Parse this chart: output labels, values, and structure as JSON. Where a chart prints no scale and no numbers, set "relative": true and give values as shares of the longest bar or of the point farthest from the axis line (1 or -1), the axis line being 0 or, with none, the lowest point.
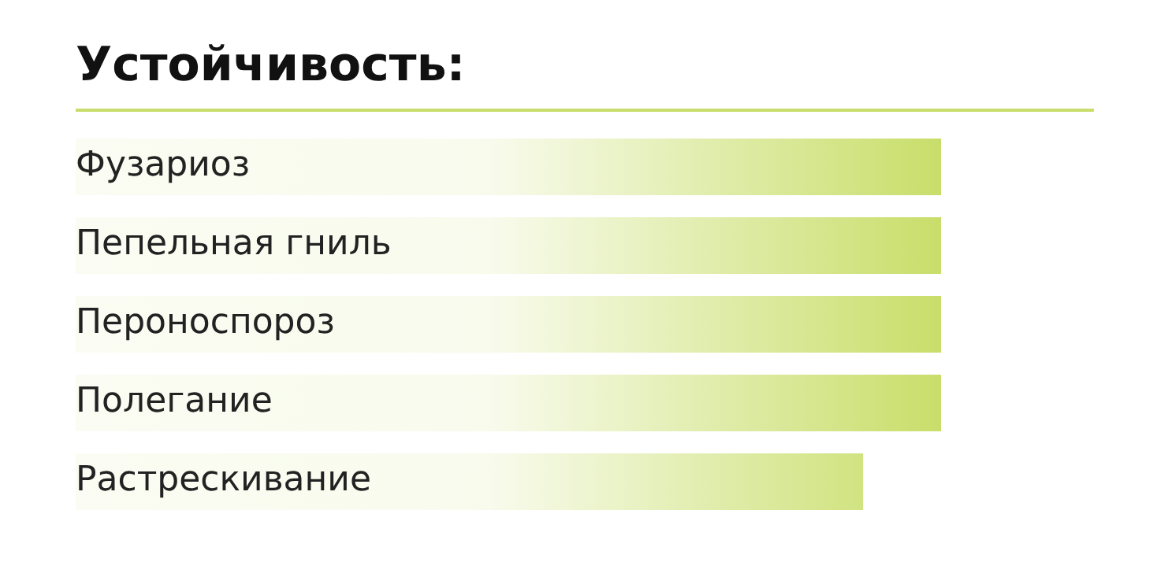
{
  "chart_data": {
    "type": "bar",
    "orientation": "horizontal",
    "relative": true,
    "title": "Устойчивость:",
    "categories": [
      "Фузариоз",
      "Пепельная гниль",
      "Пероноспороз",
      "Полегание",
      "Растрескивание"
    ],
    "values": [
      1,
      1,
      1,
      1,
      0.91
    ],
    "color": "#c8de6a"
  }
}
